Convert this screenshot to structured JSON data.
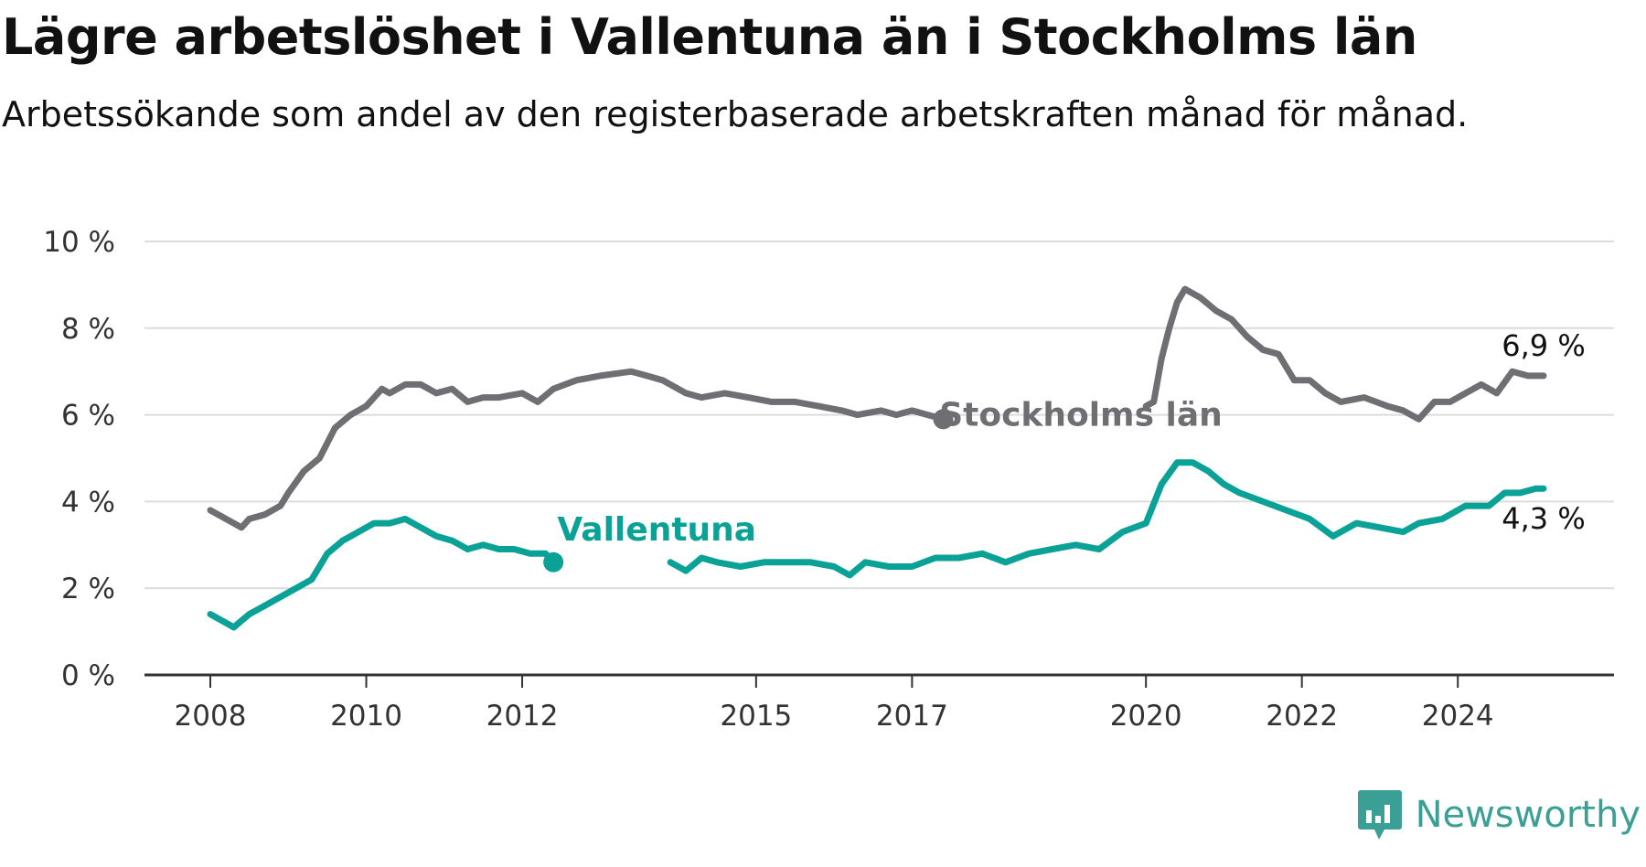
{
  "header": {
    "title": "Lägre arbetslöshet i Vallentuna än i Stockholms län",
    "subtitle": "Arbetssökande som andel av den registerbaserade arbetskraften månad för månad."
  },
  "brand": {
    "name": "Newsworthy",
    "icon": "newsworthy-logo-icon",
    "color": "#3a9f95"
  },
  "chart_data": {
    "type": "line",
    "title": "Lägre arbetslöshet i Vallentuna än i Stockholms län",
    "subtitle": "Arbetssökande som andel av den registerbaserade arbetskraften månad för månad.",
    "xlabel": "",
    "ylabel": "",
    "ylim": [
      0,
      10
    ],
    "xlim": [
      2008,
      2025.8
    ],
    "yticks": [
      0,
      2,
      4,
      6,
      8,
      10
    ],
    "ytick_labels": [
      "0 %",
      "2 %",
      "4 %",
      "6 %",
      "8 %",
      "10 %"
    ],
    "xticks": [
      2008,
      2010,
      2012,
      2015,
      2017,
      2020,
      2022,
      2024
    ],
    "xtick_labels": [
      "2008",
      "2010",
      "2012",
      "2015",
      "2017",
      "2020",
      "2022",
      "2024"
    ],
    "grid": true,
    "series": [
      {
        "name": "Stockholms län",
        "color": "#6f6f73",
        "end_label": "6,9 %",
        "x": [
          2008.0,
          2008.3,
          2008.4,
          2008.5,
          2008.7,
          2008.9,
          2009.0,
          2009.2,
          2009.4,
          2009.6,
          2009.8,
          2010.0,
          2010.2,
          2010.3,
          2010.5,
          2010.7,
          2010.9,
          2011.1,
          2011.3,
          2011.5,
          2011.7,
          2012.0,
          2012.2,
          2012.4,
          2012.7,
          2013.0,
          2013.4,
          2013.6,
          2013.8,
          2014.1,
          2014.3,
          2014.6,
          2014.9,
          2015.2,
          2015.5,
          2015.8,
          2016.1,
          2016.3,
          2016.6,
          2016.8,
          2017.0,
          2017.2,
          2017.4
        ],
        "y": [
          3.8,
          3.5,
          3.4,
          3.6,
          3.7,
          3.9,
          4.2,
          4.7,
          5.0,
          5.7,
          6.0,
          6.2,
          6.6,
          6.5,
          6.7,
          6.7,
          6.5,
          6.6,
          6.3,
          6.4,
          6.4,
          6.5,
          6.3,
          6.6,
          6.8,
          6.9,
          7.0,
          6.9,
          6.8,
          6.5,
          6.4,
          6.5,
          6.4,
          6.3,
          6.3,
          6.2,
          6.1,
          6.0,
          6.1,
          6.0,
          6.1,
          6.0,
          5.9
        ]
      },
      {
        "name": "Stockholms län (forts.)",
        "color": "#6f6f73",
        "x": [
          2020.0,
          2020.1,
          2020.2,
          2020.3,
          2020.4,
          2020.5,
          2020.7,
          2020.9,
          2021.1,
          2021.3,
          2021.5,
          2021.7,
          2021.9,
          2022.1,
          2022.3,
          2022.5,
          2022.8,
          2023.1,
          2023.3,
          2023.5,
          2023.7,
          2023.9,
          2024.1,
          2024.3,
          2024.5,
          2024.7,
          2024.9,
          2025.1
        ],
        "y": [
          6.2,
          6.3,
          7.3,
          8.0,
          8.6,
          8.9,
          8.7,
          8.4,
          8.2,
          7.8,
          7.5,
          7.4,
          6.8,
          6.8,
          6.5,
          6.3,
          6.4,
          6.2,
          6.1,
          5.9,
          6.3,
          6.3,
          6.5,
          6.7,
          6.5,
          7.0,
          6.9,
          6.9
        ]
      },
      {
        "name": "Vallentuna",
        "color": "#0aa197",
        "end_label": "4,3 %",
        "x": [
          2008.0,
          2008.2,
          2008.3,
          2008.5,
          2008.7,
          2008.9,
          2009.1,
          2009.3,
          2009.5,
          2009.7,
          2009.9,
          2010.1,
          2010.3,
          2010.5,
          2010.7,
          2010.9,
          2011.1,
          2011.3,
          2011.5,
          2011.7,
          2011.9,
          2012.1,
          2012.3,
          2012.4
        ],
        "y": [
          1.4,
          1.2,
          1.1,
          1.4,
          1.6,
          1.8,
          2.0,
          2.2,
          2.8,
          3.1,
          3.3,
          3.5,
          3.5,
          3.6,
          3.4,
          3.2,
          3.1,
          2.9,
          3.0,
          2.9,
          2.9,
          2.8,
          2.8,
          2.6
        ]
      },
      {
        "name": "Vallentuna (forts.)",
        "color": "#0aa197",
        "x": [
          2013.9,
          2014.1,
          2014.3,
          2014.5,
          2014.8,
          2015.1,
          2015.4,
          2015.7,
          2016.0,
          2016.2,
          2016.4,
          2016.7,
          2017.0,
          2017.3,
          2017.6,
          2017.9,
          2018.2,
          2018.5,
          2018.8,
          2019.1,
          2019.4,
          2019.7,
          2020.0,
          2020.2,
          2020.4,
          2020.6,
          2020.8,
          2021.0,
          2021.2,
          2021.5,
          2021.8,
          2022.1,
          2022.4,
          2022.7,
          2023.0,
          2023.3,
          2023.5,
          2023.8,
          2024.1,
          2024.4,
          2024.6,
          2024.8,
          2025.0,
          2025.1
        ],
        "y": [
          2.6,
          2.4,
          2.7,
          2.6,
          2.5,
          2.6,
          2.6,
          2.6,
          2.5,
          2.3,
          2.6,
          2.5,
          2.5,
          2.7,
          2.7,
          2.8,
          2.6,
          2.8,
          2.9,
          3.0,
          2.9,
          3.3,
          3.5,
          4.4,
          4.9,
          4.9,
          4.7,
          4.4,
          4.2,
          4.0,
          3.8,
          3.6,
          3.2,
          3.5,
          3.4,
          3.3,
          3.5,
          3.6,
          3.9,
          3.9,
          4.2,
          4.2,
          4.3,
          4.3
        ]
      }
    ],
    "series_labels": [
      {
        "text": "Stockholms län",
        "color": "#6f6f73"
      },
      {
        "text": "Vallentuna",
        "color": "#0aa197"
      }
    ]
  }
}
